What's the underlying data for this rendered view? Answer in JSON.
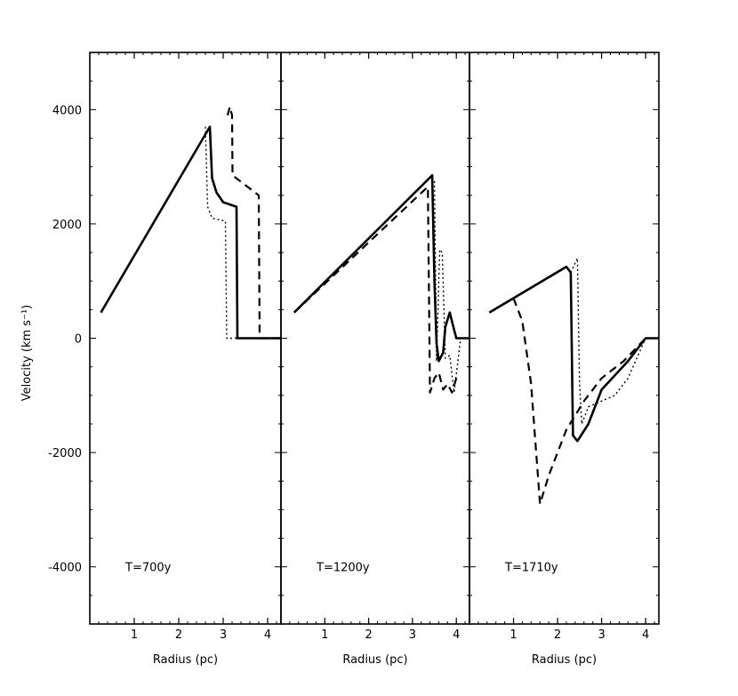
{
  "chart_data": {
    "type": "line",
    "ylabel": "Velocity (km s⁻¹)",
    "ylim": [
      -5000,
      5000
    ],
    "yticks": [
      -4000,
      -2000,
      0,
      2000,
      4000
    ],
    "ytick_labels": [
      "-4000",
      "-2000",
      "0",
      "2000",
      "4000"
    ],
    "grid": false,
    "panels": [
      {
        "annotation": "T=700y",
        "xlabel": "Radius (pc)",
        "xlim": [
          0,
          4.3
        ],
        "xticks": [
          1,
          2,
          3,
          4
        ],
        "xtick_labels": [
          "1",
          "2",
          "3",
          "4"
        ],
        "series": [
          {
            "style": "solid",
            "x": [
              0.25,
              2.7,
              2.75,
              2.85,
              3.0,
              3.3,
              3.32,
              3.35,
              4.3
            ],
            "y": [
              450,
              3700,
              2800,
              2550,
              2380,
              2300,
              0,
              0,
              0
            ]
          },
          {
            "style": "dashed",
            "x": [
              3.1,
              3.15,
              3.2,
              3.21,
              3.8,
              3.82,
              4.3
            ],
            "y": [
              3900,
              4050,
              3900,
              2850,
              2500,
              0,
              0
            ]
          },
          {
            "style": "dotted",
            "x": [
              2.6,
              2.65,
              2.75,
              3.05,
              3.08,
              3.15,
              3.3
            ],
            "y": [
              3700,
              2300,
              2100,
              2050,
              0,
              0,
              0
            ]
          }
        ]
      },
      {
        "annotation": "T=1200y",
        "xlabel": "Radius (pc)",
        "xlim": [
          0,
          4.3
        ],
        "xticks": [
          1,
          2,
          3,
          4
        ],
        "xtick_labels": [
          "1",
          "2",
          "3",
          "4"
        ],
        "series": [
          {
            "style": "solid",
            "x": [
              0.3,
              3.45,
              3.5,
              3.55,
              3.6,
              3.7,
              3.75,
              3.85,
              3.95,
              4.0,
              4.3
            ],
            "y": [
              450,
              2850,
              1000,
              -100,
              -400,
              -250,
              200,
              450,
              150,
              0,
              0
            ]
          },
          {
            "style": "dashed",
            "x": [
              0.3,
              3.35,
              3.4,
              3.5,
              3.6,
              3.7,
              3.8,
              3.9,
              4.0
            ],
            "y": [
              450,
              2650,
              -950,
              -700,
              -600,
              -900,
              -800,
              -950,
              -700
            ]
          },
          {
            "style": "dotted",
            "x": [
              3.5,
              3.55,
              3.62,
              3.68,
              3.75,
              3.85,
              3.95,
              4.1,
              4.3
            ],
            "y": [
              2750,
              -400,
              1550,
              1500,
              -350,
              -300,
              -950,
              0,
              0
            ]
          }
        ]
      },
      {
        "annotation": "T=1710y",
        "xlabel": "Radius (pc)",
        "xlim": [
          0,
          4.3
        ],
        "xticks": [
          1,
          2,
          3,
          4
        ],
        "xtick_labels": [
          "1",
          "2",
          "3",
          "4"
        ],
        "series": [
          {
            "style": "solid",
            "x": [
              0.45,
              2.2,
              2.3,
              2.35,
              2.45,
              2.7,
              3.0,
              3.3,
              3.6,
              4.0,
              4.3
            ],
            "y": [
              450,
              1250,
              1150,
              -1700,
              -1800,
              -1500,
              -900,
              -650,
              -400,
              0,
              0
            ]
          },
          {
            "style": "dashed",
            "x": [
              1.0,
              1.2,
              1.4,
              1.6,
              1.8,
              2.0,
              2.2,
              2.6,
              3.0,
              3.5,
              4.0
            ],
            "y": [
              700,
              300,
              -800,
              -2900,
              -2400,
              -2000,
              -1600,
              -1100,
              -700,
              -400,
              0
            ]
          },
          {
            "style": "dotted",
            "x": [
              2.3,
              2.45,
              2.5,
              2.55,
              2.7,
              3.0,
              3.3,
              3.6,
              4.0,
              4.3
            ],
            "y": [
              1150,
              1400,
              -800,
              -1500,
              -1200,
              -1100,
              -1000,
              -700,
              0,
              0
            ]
          }
        ]
      }
    ]
  }
}
